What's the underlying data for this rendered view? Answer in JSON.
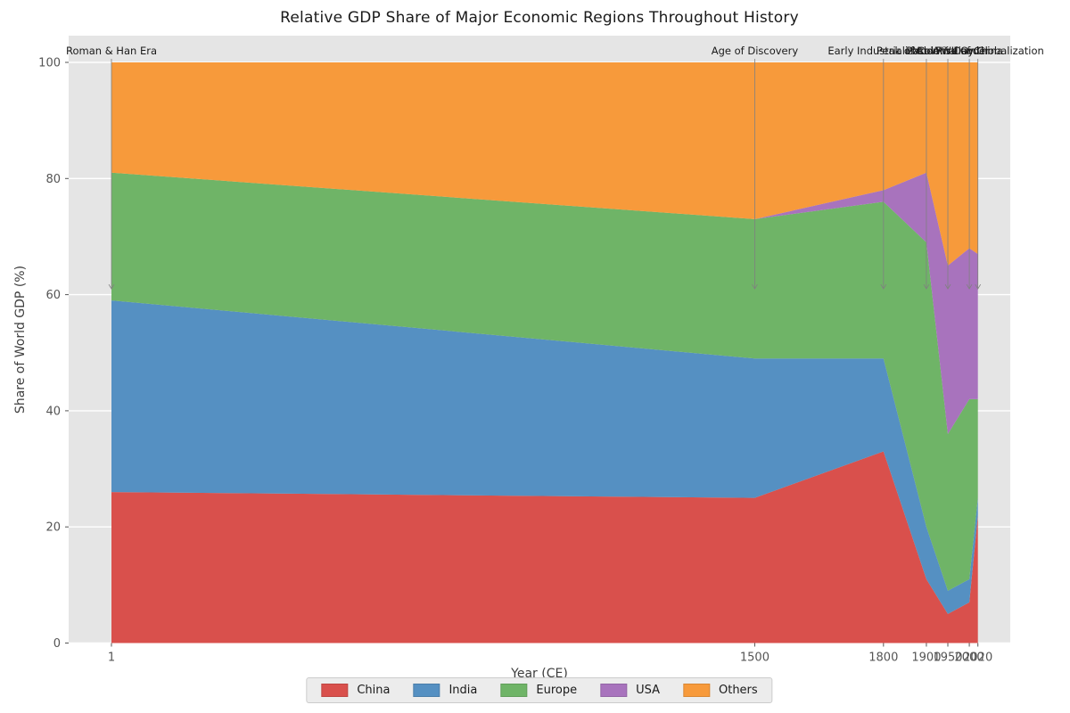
{
  "title": "Relative GDP Share of Major Economic Regions Throughout History",
  "chart_data": {
    "type": "area",
    "stacked": true,
    "title": "Relative GDP Share of Major Economic Regions Throughout History",
    "xlabel": "Year (CE)",
    "ylabel": "Share of World GDP (%)",
    "x": [
      1,
      1500,
      1800,
      1900,
      1950,
      2000,
      2020
    ],
    "x_tick_labels": [
      "1",
      "1500",
      "1800",
      "1900",
      "1950",
      "2000",
      "2020"
    ],
    "yticks": [
      0,
      20,
      40,
      60,
      80,
      100
    ],
    "ylim": [
      0,
      104.6
    ],
    "grid": true,
    "plot_bg": "#e5e5e5",
    "grid_color": "#ffffff",
    "legend_position": "bottom-center",
    "series": [
      {
        "name": "China",
        "color": "#d9504c",
        "values": [
          26,
          25,
          33,
          11,
          5,
          7,
          22
        ]
      },
      {
        "name": "India",
        "color": "#5590c2",
        "values": [
          33,
          24,
          16,
          9,
          4,
          4,
          3
        ]
      },
      {
        "name": "Europe",
        "color": "#6fb467",
        "values": [
          22,
          24,
          27,
          49,
          27,
          31,
          17
        ]
      },
      {
        "name": "USA",
        "color": "#a873bd",
        "values": [
          0,
          0,
          2,
          12,
          29,
          26,
          25
        ]
      },
      {
        "name": "Others",
        "color": "#f79a3b",
        "values": [
          19,
          27,
          22,
          19,
          35,
          32,
          33
        ]
      }
    ],
    "annotations": [
      {
        "x": 1,
        "label": "Roman & Han Era"
      },
      {
        "x": 1500,
        "label": "Age of Discovery"
      },
      {
        "x": 1800,
        "label": "Early Industrialization"
      },
      {
        "x": 1900,
        "label": "Peak of Colonialism"
      },
      {
        "x": 1950,
        "label": "Post-WWII Order"
      },
      {
        "x": 2000,
        "label": "Rise of China"
      },
      {
        "x": 2020,
        "label": "Modern Day Globalization"
      }
    ],
    "annotation_arrow_target_y": 61
  }
}
